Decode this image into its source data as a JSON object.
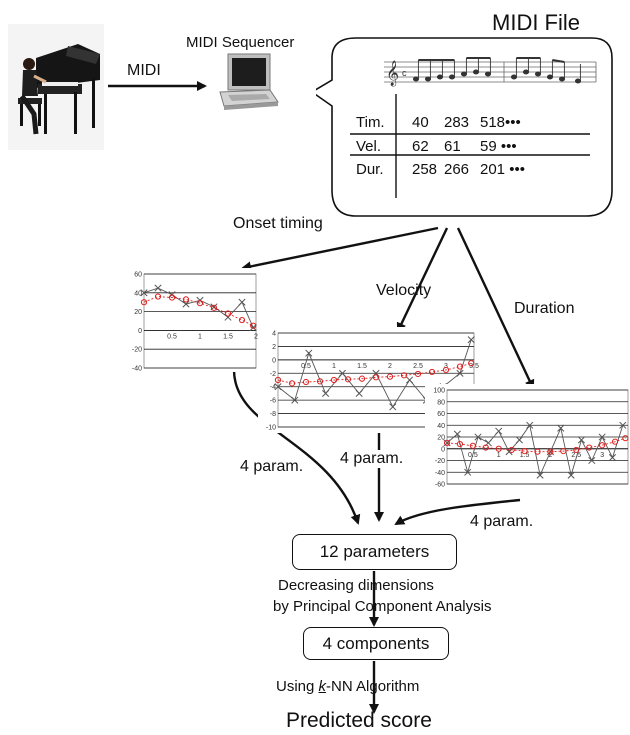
{
  "header": {
    "midi_file_title": "MIDI File",
    "sequencer_label": "MIDI Sequencer",
    "midi_arrow_label": "MIDI"
  },
  "midi_table": {
    "rows": [
      {
        "label": "Tim.",
        "values": [
          "40",
          "283",
          "518•••"
        ]
      },
      {
        "label": "Vel.",
        "values": [
          "62",
          "61",
          "59 •••"
        ]
      },
      {
        "label": "Dur.",
        "values": [
          "258",
          "266",
          "201 •••"
        ]
      }
    ]
  },
  "branches": {
    "onset": "Onset timing",
    "velocity": "Velocity",
    "duration": "Duration"
  },
  "param_labels": {
    "onset": "4 param.",
    "velocity": "4 param.",
    "duration": "4 param."
  },
  "pipeline": {
    "twelve_params": "12 parameters",
    "pca_line1": "Decreasing dimensions",
    "pca_line2": "by Principal Component Analysis",
    "four_components": "4 components",
    "knn_prefix": "Using ",
    "knn_k": "k",
    "knn_suffix": "-NN Algorithm",
    "result": "Predicted score"
  },
  "chart_data": [
    {
      "type": "scatter",
      "name": "onset",
      "xlim": [
        0,
        2
      ],
      "ylim": [
        -40,
        60
      ],
      "yticks": [
        "60",
        "40",
        "20",
        "0",
        "-20",
        "-40"
      ],
      "xticks": [
        "0.5",
        "1",
        "1.5",
        "2"
      ],
      "measured": [
        [
          0,
          40
        ],
        [
          0.25,
          45
        ],
        [
          0.5,
          38
        ],
        [
          0.75,
          28
        ],
        [
          1,
          32
        ],
        [
          1.25,
          25
        ],
        [
          1.5,
          14
        ],
        [
          1.75,
          30
        ],
        [
          1.95,
          3
        ]
      ],
      "fit": [
        [
          0,
          30
        ],
        [
          0.25,
          36
        ],
        [
          0.5,
          35
        ],
        [
          0.75,
          33
        ],
        [
          1,
          29
        ],
        [
          1.25,
          24
        ],
        [
          1.5,
          18
        ],
        [
          1.75,
          11
        ],
        [
          1.95,
          5
        ]
      ],
      "grid": true
    },
    {
      "type": "scatter",
      "name": "velocity",
      "xlim": [
        0,
        3.5
      ],
      "ylim": [
        -10,
        4
      ],
      "yticks": [
        "4",
        "2",
        "0",
        "-2",
        "-4",
        "-6",
        "-8",
        "-10"
      ],
      "xticks": [
        "0.5",
        "1",
        "1.5",
        "2",
        "2.5",
        "3",
        "3.5"
      ],
      "measured": [
        [
          0,
          -4
        ],
        [
          0.3,
          -6
        ],
        [
          0.55,
          1
        ],
        [
          0.85,
          -5
        ],
        [
          1.15,
          -2
        ],
        [
          1.45,
          -5
        ],
        [
          1.75,
          -2
        ],
        [
          2.05,
          -7
        ],
        [
          2.35,
          -3
        ],
        [
          2.65,
          -6
        ],
        [
          2.95,
          -4
        ],
        [
          3.25,
          -2
        ],
        [
          3.45,
          3
        ]
      ],
      "fit": [
        [
          0,
          -3
        ],
        [
          0.25,
          -3.5
        ],
        [
          0.5,
          -3.3
        ],
        [
          0.75,
          -3.2
        ],
        [
          1,
          -3
        ],
        [
          1.25,
          -2.9
        ],
        [
          1.5,
          -2.8
        ],
        [
          1.75,
          -2.6
        ],
        [
          2,
          -2.5
        ],
        [
          2.25,
          -2.3
        ],
        [
          2.5,
          -2.1
        ],
        [
          2.75,
          -1.8
        ],
        [
          3,
          -1.5
        ],
        [
          3.25,
          -1
        ],
        [
          3.45,
          -0.5
        ]
      ],
      "grid": true
    },
    {
      "type": "scatter",
      "name": "duration",
      "xlim": [
        0,
        3.5
      ],
      "ylim": [
        -60,
        100
      ],
      "yticks": [
        "100",
        "80",
        "60",
        "40",
        "20",
        "0",
        "-20",
        "-40",
        "-60"
      ],
      "xticks": [
        "0.5",
        "1",
        "1.5",
        "2",
        "2.5",
        "3"
      ],
      "measured": [
        [
          0,
          10
        ],
        [
          0.2,
          25
        ],
        [
          0.4,
          -40
        ],
        [
          0.6,
          20
        ],
        [
          0.8,
          10
        ],
        [
          1.0,
          30
        ],
        [
          1.2,
          -5
        ],
        [
          1.4,
          15
        ],
        [
          1.6,
          40
        ],
        [
          1.8,
          -45
        ],
        [
          2.0,
          -5
        ],
        [
          2.2,
          35
        ],
        [
          2.4,
          -45
        ],
        [
          2.6,
          15
        ],
        [
          2.8,
          -20
        ],
        [
          3.0,
          20
        ],
        [
          3.2,
          -15
        ],
        [
          3.4,
          40
        ]
      ],
      "fit": [
        [
          0,
          10
        ],
        [
          0.25,
          8
        ],
        [
          0.5,
          5
        ],
        [
          0.75,
          2
        ],
        [
          1,
          0
        ],
        [
          1.25,
          -2
        ],
        [
          1.5,
          -4
        ],
        [
          1.75,
          -5
        ],
        [
          2,
          -5
        ],
        [
          2.25,
          -4
        ],
        [
          2.5,
          -2
        ],
        [
          2.75,
          2
        ],
        [
          3,
          6
        ],
        [
          3.25,
          12
        ],
        [
          3.45,
          18
        ]
      ],
      "grid": true
    }
  ]
}
